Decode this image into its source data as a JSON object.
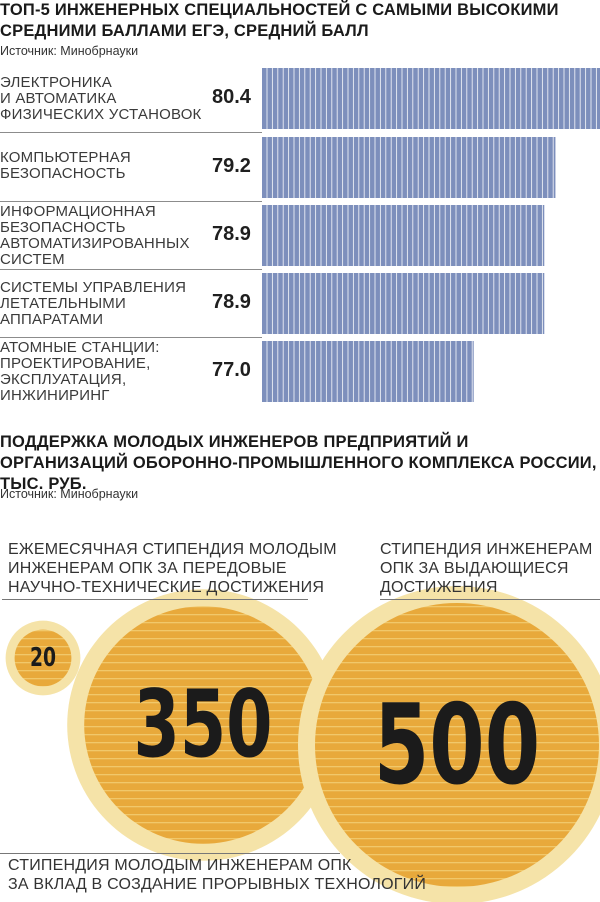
{
  "chart1": {
    "title": "ТОП-5 ИНЖЕНЕРНЫХ СПЕЦИАЛЬНОСТЕЙ С САМЫМИ ВЫСОКИМИ СРЕДНИМИ БАЛЛАМИ ЕГЭ, СРЕДНИЙ БАЛЛ",
    "source": "Источник: Минобрнауки"
  },
  "chart2": {
    "title": "ПОДДЕРЖКА МОЛОДЫХ ИНЖЕНЕРОВ ПРЕДПРИЯТИЙ И ОРГАНИЗАЦИЙ ОБОРОННО-ПРОМЫШЛЕННОГО КОМПЛЕКСА РОССИИ, ТЫС. РУБ.",
    "source": "Источник: Минобрнауки"
  },
  "colors": {
    "bar": "#7d8fbc",
    "bar_line": "#ffffff",
    "circle_outer": "#f5e3a8",
    "circle_inner": "#e8a93b",
    "circle_stripe": "#f1c86a"
  },
  "chart_data": [
    {
      "type": "bar",
      "orientation": "horizontal",
      "title": "ТОП-5 ИНЖЕНЕРНЫХ СПЕЦИАЛЬНОСТЕЙ С САМЫМИ ВЫСОКИМИ СРЕДНИМИ БАЛЛАМИ ЕГЭ, СРЕДНИЙ БАЛЛ",
      "categories": [
        "ЭЛЕКТРОНИКА И АВТОМАТИКА ФИЗИЧЕСКИХ УСТАНОВОК",
        "КОМПЬЮТЕРНАЯ БЕЗОПАСНОСТЬ",
        "ИНФОРМАЦИОННАЯ БЕЗОПАСНОСТЬ АВТОМАТИЗИРОВАННЫХ СИСТЕМ",
        "СИСТЕМЫ УПРАВЛЕНИЯ ЛЕТАТЕЛЬНЫМИ АППАРАТАМИ",
        "АТОМНЫЕ СТАНЦИИ: ПРОЕКТИРОВАНИЕ, ЭКСПЛУАТАЦИЯ, ИНЖИНИРИНГ"
      ],
      "label_lines": [
        [
          "ЭЛЕКТРОНИКА",
          "И АВТОМАТИКА",
          "ФИЗИЧЕСКИХ УСТАНОВОК"
        ],
        [
          "КОМПЬЮТЕРНАЯ",
          "БЕЗОПАСНОСТЬ"
        ],
        [
          "ИНФОРМАЦИОННАЯ",
          "БЕЗОПАСНОСТЬ",
          "АВТОМАТИЗИРОВАННЫХ",
          "СИСТЕМ"
        ],
        [
          "СИСТЕМЫ УПРАВЛЕНИЯ",
          "ЛЕТАТЕЛЬНЫМИ",
          "АППАРАТАМИ"
        ],
        [
          "АТОМНЫЕ СТАНЦИИ:",
          "ПРОЕКТИРОВАНИЕ,",
          "ЭКСПЛУАТАЦИЯ,",
          "ИНЖИНИРИНГ"
        ]
      ],
      "values": [
        80.4,
        79.2,
        78.9,
        78.9,
        77.0
      ],
      "value_labels": [
        "80.4",
        "79.2",
        "78.9",
        "78.9",
        "77.0"
      ],
      "xlim": [
        71.3,
        80.4
      ],
      "grid": false,
      "legend": "none"
    },
    {
      "type": "bubble",
      "title": "ПОДДЕРЖКА МОЛОДЫХ ИНЖЕНЕРОВ ПРЕДПРИЯТИЙ И ОРГАНИЗАЦИЙ ОБОРОННО-ПРОМЫШЛЕННОГО КОМПЛЕКСА РОССИИ, ТЫС. РУБ.",
      "items": [
        {
          "value": 20,
          "label": "20",
          "caption": [
            "ЕЖЕМЕСЯЧНАЯ СТИПЕНДИЯ МОЛОДЫМ",
            "ИНЖЕНЕРАМ ОПК ЗА ПЕРЕДОВЫЕ",
            "НАУЧНО-ТЕХНИЧЕСКИЕ ДОСТИЖЕНИЯ"
          ]
        },
        {
          "value": 350,
          "label": "350",
          "caption": [
            "СТИПЕНДИЯ МОЛОДЫМ ИНЖЕНЕРАМ ОПК",
            "ЗА ВКЛАД В СОЗДАНИЕ ПРОРЫВНЫХ ТЕХНОЛОГИЙ"
          ]
        },
        {
          "value": 500,
          "label": "500",
          "caption": [
            "СТИПЕНДИЯ ИНЖЕНЕРАМ",
            "ОПК ЗА ВЫДАЮЩИЕСЯ",
            "ДОСТИЖЕНИЯ"
          ]
        }
      ],
      "legend": "none"
    }
  ]
}
